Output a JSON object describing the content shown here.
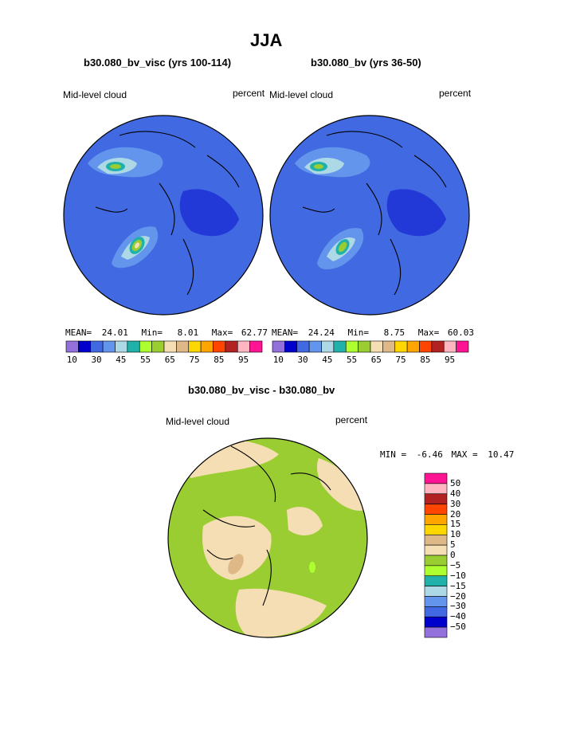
{
  "header": {
    "title": "JJA"
  },
  "chart_data": [
    {
      "type": "heatmap",
      "title": "b30.080_bv_visc (yrs 100-114)",
      "variable_label": "Mid-level cloud",
      "units_label": "percent",
      "stats": {
        "mean_label": "MEAN=",
        "mean": "24.01",
        "min_label": "Min=",
        "min": "8.01",
        "max_label": "Max=",
        "max": "62.77"
      },
      "colorbar_ticks": [
        "10",
        "30",
        "45",
        "55",
        "65",
        "75",
        "85",
        "95"
      ],
      "colorbar_colors": [
        "#9370db",
        "#0000cd",
        "#4169e1",
        "#6495ed",
        "#add8e6",
        "#20b2aa",
        "#adff2f",
        "#9acd32",
        "#f5deb3",
        "#deb887",
        "#ffd700",
        "#ffa500",
        "#ff4500",
        "#b22222",
        "#ffb6c1",
        "#ff1493"
      ]
    },
    {
      "type": "heatmap",
      "title": "b30.080_bv (yrs 36-50)",
      "variable_label": "Mid-level cloud",
      "units_label": "percent",
      "stats": {
        "mean_label": "MEAN=",
        "mean": "24.24",
        "min_label": "Min=",
        "min": "8.75",
        "max_label": "Max=",
        "max": "60.03"
      },
      "colorbar_ticks": [
        "10",
        "30",
        "45",
        "55",
        "65",
        "75",
        "85",
        "95"
      ],
      "colorbar_colors": [
        "#9370db",
        "#0000cd",
        "#4169e1",
        "#6495ed",
        "#add8e6",
        "#20b2aa",
        "#adff2f",
        "#9acd32",
        "#f5deb3",
        "#deb887",
        "#ffd700",
        "#ffa500",
        "#ff4500",
        "#b22222",
        "#ffb6c1",
        "#ff1493"
      ]
    },
    {
      "type": "heatmap",
      "title": "b30.080_bv_visc - b30.080_bv",
      "variable_label": "Mid-level cloud",
      "units_label": "percent",
      "stats": {
        "min_label": "MIN =",
        "min": "-6.46",
        "max_label": "MAX =",
        "max": "10.47"
      },
      "colorbar_ticks": [
        "50",
        "40",
        "30",
        "20",
        "15",
        "10",
        "5",
        "0",
        "−5",
        "−10",
        "−15",
        "−20",
        "−30",
        "−40",
        "−50"
      ],
      "colorbar_colors": [
        "#ff1493",
        "#ffb6c1",
        "#b22222",
        "#ff4500",
        "#ffa500",
        "#ffd700",
        "#deb887",
        "#f5deb3",
        "#9acd32",
        "#adff2f",
        "#20b2aa",
        "#add8e6",
        "#6495ed",
        "#4169e1",
        "#0000cd",
        "#9370db"
      ]
    }
  ]
}
